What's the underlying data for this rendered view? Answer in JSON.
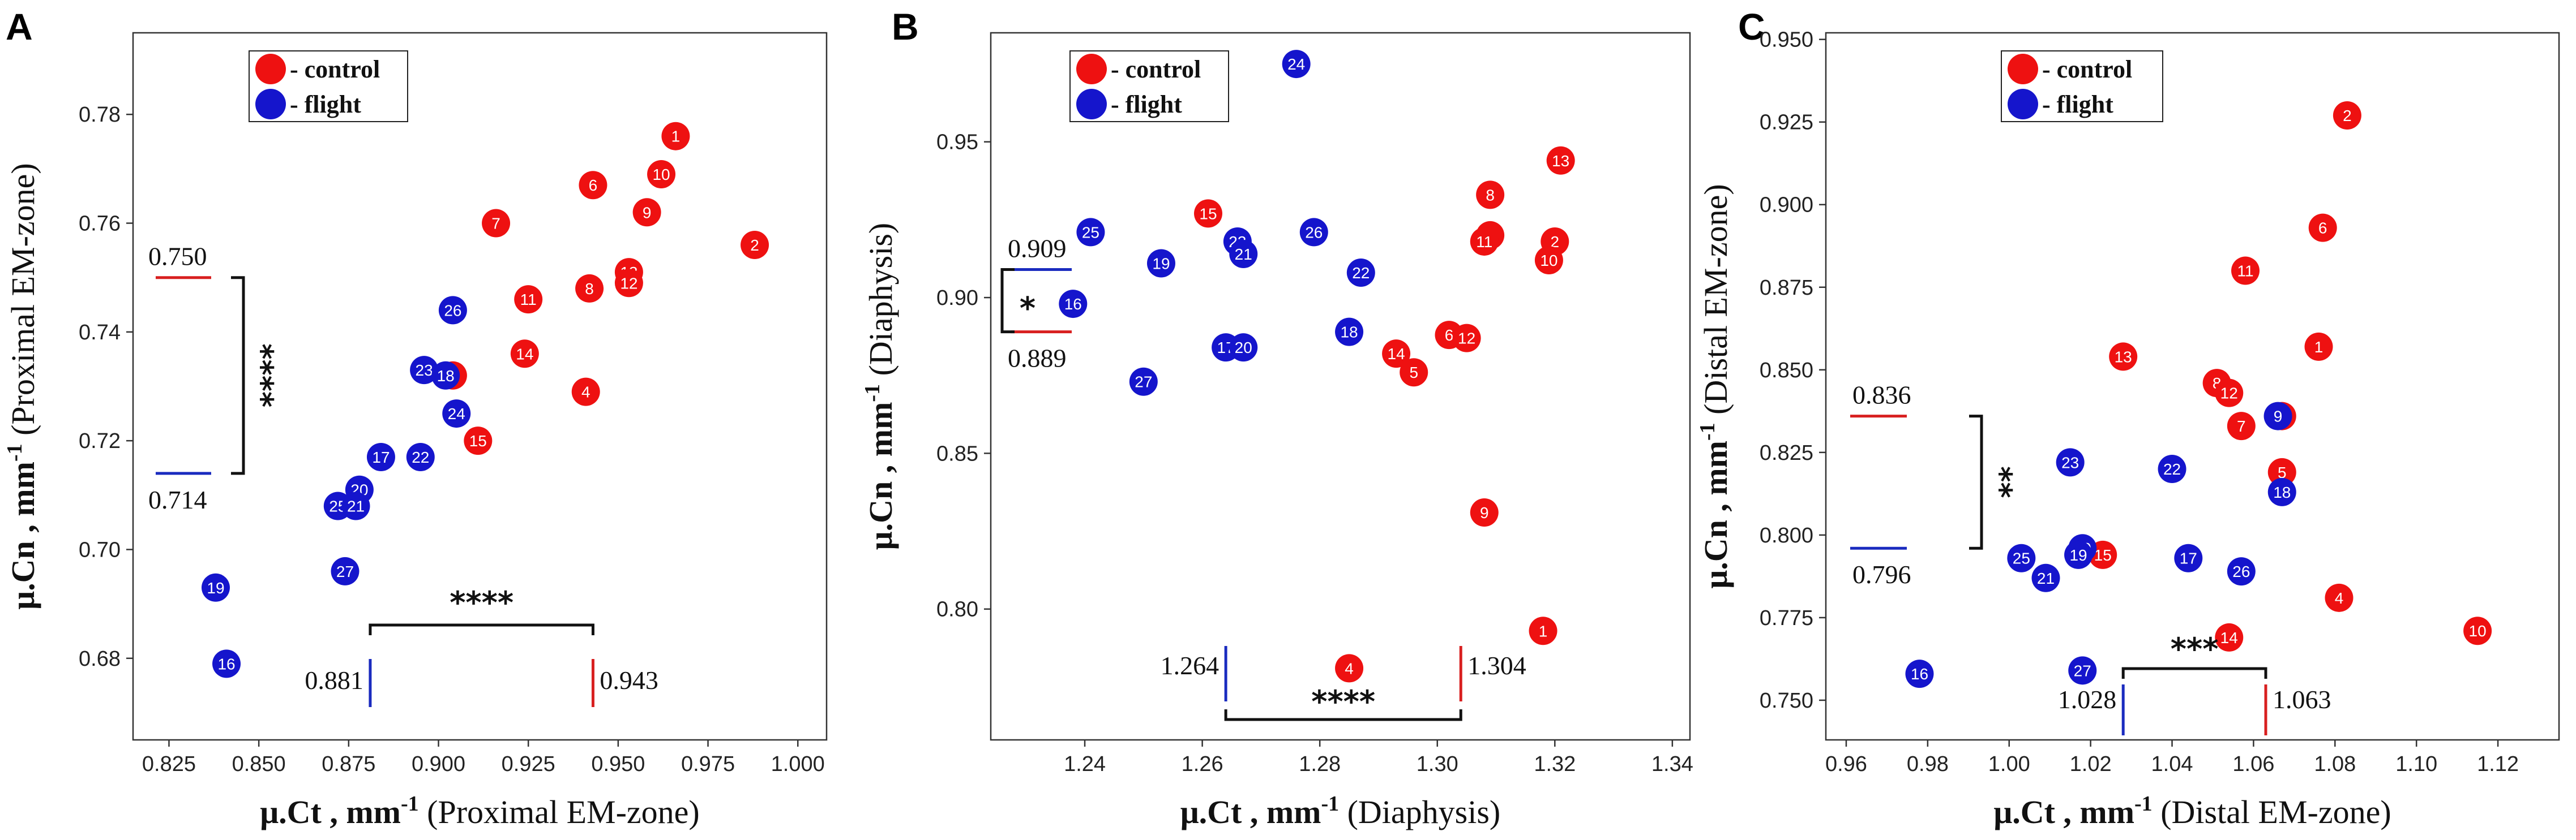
{
  "chart_data": [
    {
      "panel": "A",
      "type": "scatter",
      "xlabel": {
        "main": "μ.Ct , mm",
        "sup": "-1",
        "rest": " (Proximal EM-zone)"
      },
      "ylabel": {
        "main": "μ.Cn , mm",
        "sup": "-1",
        "rest": " (Proximal EM-zone)"
      },
      "xlim": [
        0.815,
        1.008
      ],
      "ylim": [
        0.665,
        0.795
      ],
      "xticks": [
        0.825,
        0.85,
        0.875,
        0.9,
        0.925,
        0.95,
        0.975,
        1.0
      ],
      "xtick_labels": [
        "0.825",
        "0.850",
        "0.875",
        "0.900",
        "0.925",
        "0.950",
        "0.975",
        "1.000"
      ],
      "yticks": [
        0.68,
        0.7,
        0.72,
        0.74,
        0.76,
        0.78
      ],
      "ytick_labels": [
        "0.68",
        "0.70",
        "0.72",
        "0.74",
        "0.76",
        "0.78"
      ],
      "legend": [
        {
          "label": "- control",
          "color": "#ee1111"
        },
        {
          "label": "- flight",
          "color": "#1515cc"
        }
      ],
      "series": [
        {
          "name": "control",
          "color": "#ee1111",
          "points": [
            {
              "label": "1",
              "x": 0.966,
              "y": 0.776
            },
            {
              "label": "10",
              "x": 0.962,
              "y": 0.769
            },
            {
              "label": "9",
              "x": 0.958,
              "y": 0.762
            },
            {
              "label": "6",
              "x": 0.943,
              "y": 0.767
            },
            {
              "label": "2",
              "x": 0.988,
              "y": 0.756
            },
            {
              "label": "7",
              "x": 0.916,
              "y": 0.76
            },
            {
              "label": "8",
              "x": 0.942,
              "y": 0.748
            },
            {
              "label": "13",
              "x": 0.953,
              "y": 0.751
            },
            {
              "label": "12",
              "x": 0.953,
              "y": 0.749
            },
            {
              "label": "11",
              "x": 0.925,
              "y": 0.746
            },
            {
              "label": "14",
              "x": 0.924,
              "y": 0.736
            },
            {
              "label": "4",
              "x": 0.941,
              "y": 0.729
            },
            {
              "label": "3",
              "x": 0.904,
              "y": 0.732
            },
            {
              "label": "15",
              "x": 0.911,
              "y": 0.72
            }
          ]
        },
        {
          "name": "flight",
          "color": "#1515cc",
          "points": [
            {
              "label": "26",
              "x": 0.904,
              "y": 0.744
            },
            {
              "label": "23",
              "x": 0.896,
              "y": 0.733
            },
            {
              "label": "18",
              "x": 0.902,
              "y": 0.732
            },
            {
              "label": "24",
              "x": 0.905,
              "y": 0.725
            },
            {
              "label": "22",
              "x": 0.895,
              "y": 0.717
            },
            {
              "label": "17",
              "x": 0.884,
              "y": 0.717
            },
            {
              "label": "20",
              "x": 0.878,
              "y": 0.711
            },
            {
              "label": "25",
              "x": 0.872,
              "y": 0.708
            },
            {
              "label": "21",
              "x": 0.877,
              "y": 0.708
            },
            {
              "label": "27",
              "x": 0.874,
              "y": 0.696
            },
            {
              "label": "19",
              "x": 0.838,
              "y": 0.693
            },
            {
              "label": "16",
              "x": 0.841,
              "y": 0.679
            }
          ]
        }
      ],
      "annotations": {
        "y_compare": {
          "control_mean": 0.75,
          "control_label": "0.750",
          "flight_mean": 0.714,
          "flight_label": "0.714",
          "significance": "****"
        },
        "x_compare": {
          "flight_mean": 0.881,
          "flight_label": "0.881",
          "control_mean": 0.943,
          "control_label": "0.943",
          "significance": "****"
        }
      }
    },
    {
      "panel": "B",
      "type": "scatter",
      "xlabel": {
        "main": "μ.Ct , mm",
        "sup": "-1",
        "rest": " (Diaphysis)"
      },
      "ylabel": {
        "main": "μ.Cn , mm",
        "sup": "-1",
        "rest": " (Diaphysis)"
      },
      "xlim": [
        1.224,
        1.343
      ],
      "ylim": [
        0.758,
        0.985
      ],
      "xticks": [
        1.24,
        1.26,
        1.28,
        1.3,
        1.32,
        1.34
      ],
      "xtick_labels": [
        "1.24",
        "1.26",
        "1.28",
        "1.30",
        "1.32",
        "1.34"
      ],
      "yticks": [
        0.8,
        0.85,
        0.9,
        0.95
      ],
      "ytick_labels": [
        "0.80",
        "0.85",
        "0.90",
        "0.95"
      ],
      "legend": [
        {
          "label": "- control",
          "color": "#ee1111"
        },
        {
          "label": "- flight",
          "color": "#1515cc"
        }
      ],
      "series": [
        {
          "name": "control",
          "color": "#ee1111",
          "points": [
            {
              "label": "13",
              "x": 1.321,
              "y": 0.944
            },
            {
              "label": "15",
              "x": 1.261,
              "y": 0.927
            },
            {
              "label": "8",
              "x": 1.309,
              "y": 0.933
            },
            {
              "label": "3",
              "x": 1.309,
              "y": 0.92
            },
            {
              "label": "11",
              "x": 1.308,
              "y": 0.918
            },
            {
              "label": "2",
              "x": 1.32,
              "y": 0.918
            },
            {
              "label": "10",
              "x": 1.319,
              "y": 0.912
            },
            {
              "label": "6",
              "x": 1.302,
              "y": 0.888
            },
            {
              "label": "12",
              "x": 1.305,
              "y": 0.887
            },
            {
              "label": "14",
              "x": 1.293,
              "y": 0.882
            },
            {
              "label": "5",
              "x": 1.296,
              "y": 0.876
            },
            {
              "label": "9",
              "x": 1.308,
              "y": 0.831
            },
            {
              "label": "1",
              "x": 1.318,
              "y": 0.793
            },
            {
              "label": "4",
              "x": 1.285,
              "y": 0.781
            }
          ]
        },
        {
          "name": "flight",
          "color": "#1515cc",
          "points": [
            {
              "label": "24",
              "x": 1.276,
              "y": 0.975
            },
            {
              "label": "25",
              "x": 1.241,
              "y": 0.921
            },
            {
              "label": "26",
              "x": 1.279,
              "y": 0.921
            },
            {
              "label": "23",
              "x": 1.266,
              "y": 0.918
            },
            {
              "label": "21",
              "x": 1.267,
              "y": 0.914
            },
            {
              "label": "19",
              "x": 1.253,
              "y": 0.911
            },
            {
              "label": "22",
              "x": 1.287,
              "y": 0.908
            },
            {
              "label": "16",
              "x": 1.238,
              "y": 0.898
            },
            {
              "label": "18",
              "x": 1.285,
              "y": 0.889
            },
            {
              "label": "17",
              "x": 1.264,
              "y": 0.884
            },
            {
              "label": "20",
              "x": 1.267,
              "y": 0.884
            },
            {
              "label": "27",
              "x": 1.25,
              "y": 0.873
            }
          ]
        }
      ],
      "annotations": {
        "y_compare": {
          "flight_mean": 0.909,
          "flight_label": "0.909",
          "control_mean": 0.889,
          "control_label": "0.889",
          "significance": "*"
        },
        "x_compare": {
          "flight_mean": 1.264,
          "flight_label": "1.264",
          "control_mean": 1.304,
          "control_label": "1.304",
          "significance": "****"
        }
      }
    },
    {
      "panel": "C",
      "type": "scatter",
      "xlabel": {
        "main": "μ.Ct , mm",
        "sup": "-1",
        "rest": " (Distal EM-zone)"
      },
      "ylabel": {
        "main": "μ.Cn , mm",
        "sup": "-1",
        "rest": " (Distal EM-zone)"
      },
      "xlim": [
        0.955,
        1.135
      ],
      "ylim": [
        0.738,
        0.952
      ],
      "xticks": [
        0.96,
        0.98,
        1.0,
        1.02,
        1.04,
        1.06,
        1.08,
        1.1,
        1.12
      ],
      "xtick_labels": [
        "0.96",
        "0.98",
        "1.00",
        "1.02",
        "1.04",
        "1.06",
        "1.08",
        "1.10",
        "1.12"
      ],
      "yticks": [
        0.75,
        0.775,
        0.8,
        0.825,
        0.85,
        0.875,
        0.9,
        0.925,
        0.95
      ],
      "ytick_labels": [
        "0.750",
        "0.775",
        "0.800",
        "0.825",
        "0.850",
        "0.875",
        "0.900",
        "0.925",
        "0.950"
      ],
      "legend": [
        {
          "label": "- control",
          "color": "#ee1111"
        },
        {
          "label": "- flight",
          "color": "#1515cc"
        }
      ],
      "series": [
        {
          "name": "control",
          "color": "#ee1111",
          "points": [
            {
              "label": "2",
              "x": 1.083,
              "y": 0.927
            },
            {
              "label": "6",
              "x": 1.077,
              "y": 0.893
            },
            {
              "label": "11",
              "x": 1.058,
              "y": 0.88
            },
            {
              "label": "1",
              "x": 1.076,
              "y": 0.857
            },
            {
              "label": "13",
              "x": 1.028,
              "y": 0.854
            },
            {
              "label": "8",
              "x": 1.051,
              "y": 0.846
            },
            {
              "label": "12",
              "x": 1.054,
              "y": 0.843
            },
            {
              "label": "3",
              "x": 1.067,
              "y": 0.836
            },
            {
              "label": "7",
              "x": 1.057,
              "y": 0.833
            },
            {
              "label": "5",
              "x": 1.067,
              "y": 0.819
            },
            {
              "label": "15",
              "x": 1.023,
              "y": 0.794
            },
            {
              "label": "4",
              "x": 1.081,
              "y": 0.781
            },
            {
              "label": "10",
              "x": 1.115,
              "y": 0.771
            },
            {
              "label": "14",
              "x": 1.054,
              "y": 0.769
            }
          ]
        },
        {
          "name": "flight",
          "color": "#1515cc",
          "points": [
            {
              "label": "9",
              "x": 1.066,
              "y": 0.836
            },
            {
              "label": "23",
              "x": 1.015,
              "y": 0.822
            },
            {
              "label": "22",
              "x": 1.04,
              "y": 0.82
            },
            {
              "label": "18",
              "x": 1.067,
              "y": 0.813
            },
            {
              "label": "20",
              "x": 1.018,
              "y": 0.796
            },
            {
              "label": "19",
              "x": 1.017,
              "y": 0.794
            },
            {
              "label": "17",
              "x": 1.044,
              "y": 0.793
            },
            {
              "label": "25",
              "x": 1.003,
              "y": 0.793
            },
            {
              "label": "26",
              "x": 1.057,
              "y": 0.789
            },
            {
              "label": "21",
              "x": 1.009,
              "y": 0.787
            },
            {
              "label": "27",
              "x": 1.018,
              "y": 0.759
            },
            {
              "label": "16",
              "x": 0.978,
              "y": 0.758
            }
          ]
        }
      ],
      "annotations": {
        "y_compare": {
          "control_mean": 0.836,
          "control_label": "0.836",
          "flight_mean": 0.796,
          "flight_label": "0.796",
          "significance": "**"
        },
        "x_compare": {
          "flight_mean": 1.028,
          "flight_label": "1.028",
          "control_mean": 1.063,
          "control_label": "1.063",
          "significance": "***"
        }
      }
    }
  ]
}
